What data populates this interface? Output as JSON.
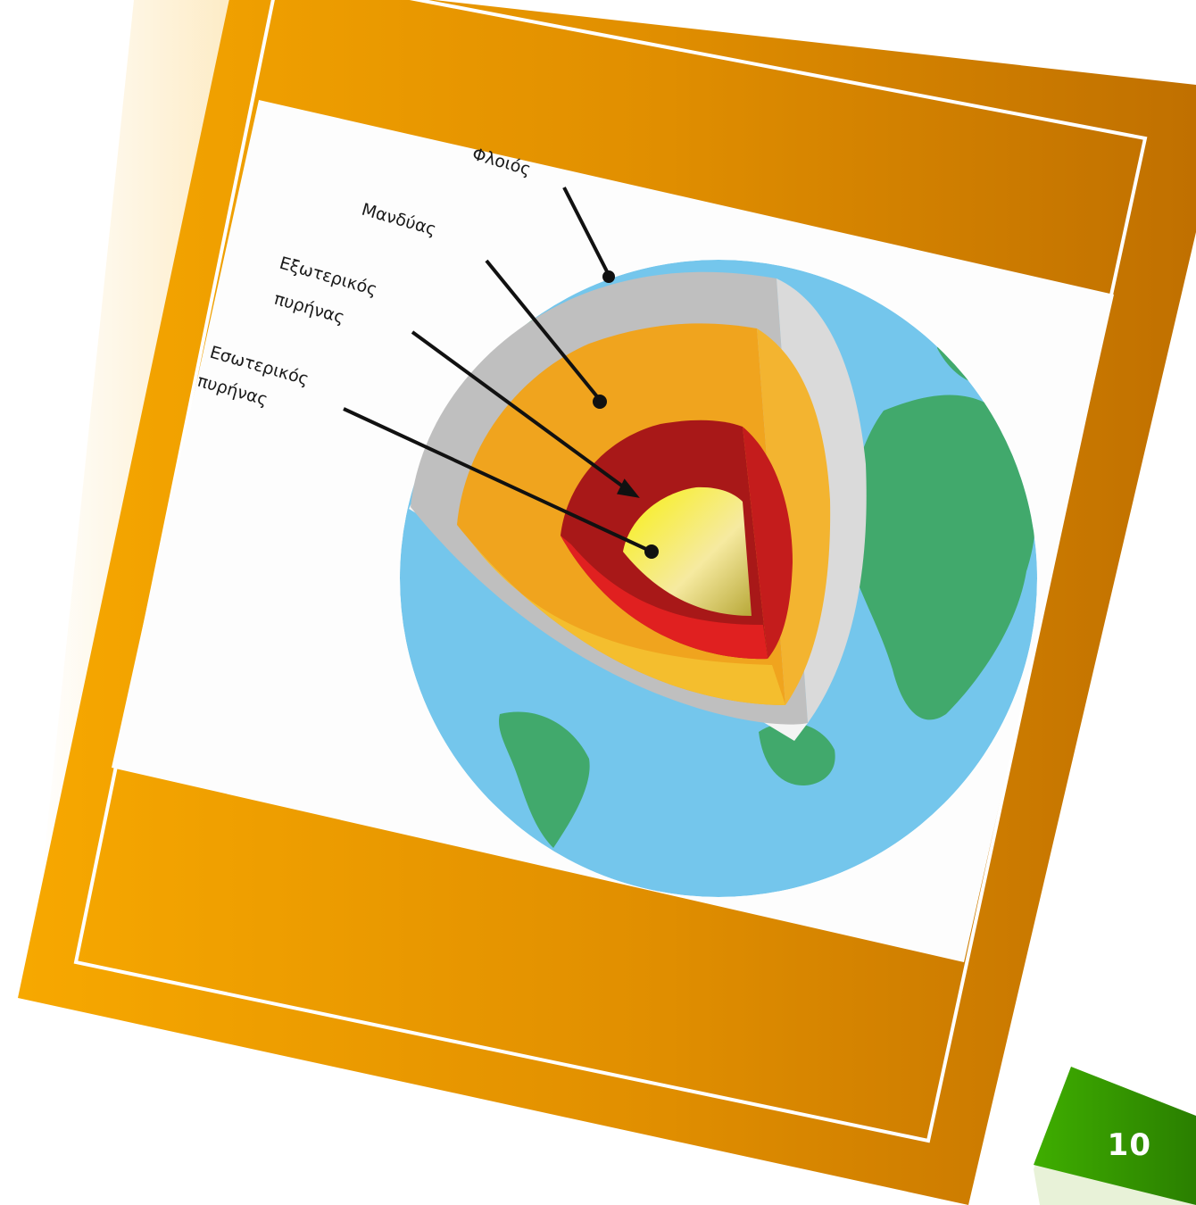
{
  "diagram": {
    "labels": {
      "crust": "Φλοιός",
      "mantle": "Μανδύας",
      "outer_core_line1": "Εξωτερικός",
      "outer_core_line2": "πυρήνας",
      "inner_core_line1": "Εσωτερικός",
      "inner_core_line2": "πυρήνας"
    },
    "colors": {
      "frame_start": "#F5A500",
      "frame_end": "#C47800",
      "ocean": "#74C6EC",
      "land": "#41A96C",
      "crust": "#BEBEBE",
      "mantle": "#F0A41E",
      "outer_core": "#B01818",
      "inner_core": "#F8F020",
      "badge": "#3CA800"
    }
  },
  "footer": {
    "page_number": "10"
  }
}
